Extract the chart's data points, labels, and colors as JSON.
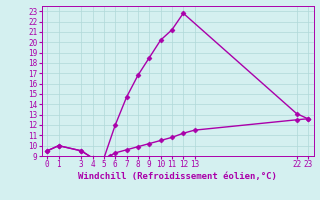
{
  "xlabel": "Windchill (Refroidissement éolien,°C)",
  "background_color": "#d4f0f0",
  "line_color": "#aa00aa",
  "grid_color": "#b0d8d8",
  "xlim": [
    -0.5,
    23.5
  ],
  "ylim": [
    9,
    23.5
  ],
  "yticks": [
    9,
    10,
    11,
    12,
    13,
    14,
    15,
    16,
    17,
    18,
    19,
    20,
    21,
    22,
    23
  ],
  "xticks": [
    0,
    1,
    3,
    4,
    5,
    6,
    7,
    8,
    9,
    10,
    11,
    12,
    13,
    22,
    23
  ],
  "curve1_x": [
    0,
    1,
    3,
    4,
    5,
    6,
    7,
    8,
    9,
    10,
    11,
    12,
    22,
    23
  ],
  "curve1_y": [
    9.5,
    10.0,
    9.5,
    8.8,
    8.8,
    12.0,
    14.7,
    16.8,
    18.5,
    20.2,
    21.2,
    22.8,
    13.1,
    12.6
  ],
  "curve2_x": [
    0,
    1,
    3,
    4,
    5,
    5.5,
    6,
    7,
    8,
    9,
    10,
    11,
    12,
    13,
    22,
    23
  ],
  "curve2_y": [
    9.5,
    10.0,
    9.5,
    8.8,
    8.8,
    9.0,
    9.3,
    9.6,
    9.9,
    10.2,
    10.5,
    10.8,
    11.2,
    11.5,
    12.5,
    12.6
  ],
  "marker": "D",
  "markersize": 2.5,
  "linewidth": 1.0,
  "tick_fontsize": 5.5,
  "label_fontsize": 6.5
}
